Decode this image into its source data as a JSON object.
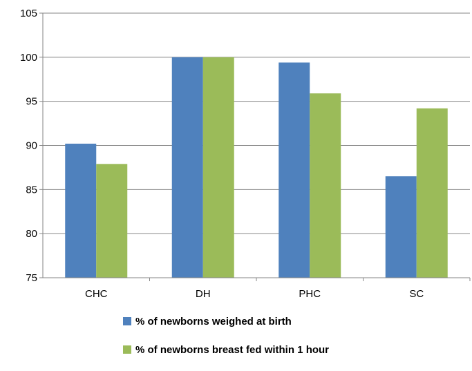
{
  "chart_data": {
    "type": "bar",
    "categories": [
      "CHC",
      "DH",
      "PHC",
      "SC"
    ],
    "series": [
      {
        "name": "% of newborns weighed at birth",
        "color": "#4f81bd",
        "values": [
          90.2,
          100.0,
          99.4,
          86.5
        ]
      },
      {
        "name": "% of newborns breast fed within 1 hour",
        "color": "#9bbb59",
        "values": [
          87.9,
          100.0,
          95.9,
          94.2
        ]
      }
    ],
    "ylim": [
      75,
      105
    ],
    "yticks": [
      75,
      80,
      85,
      90,
      95,
      100,
      105
    ],
    "grid": true,
    "legend": "bottom",
    "title": "",
    "xlabel": "",
    "ylabel": ""
  }
}
